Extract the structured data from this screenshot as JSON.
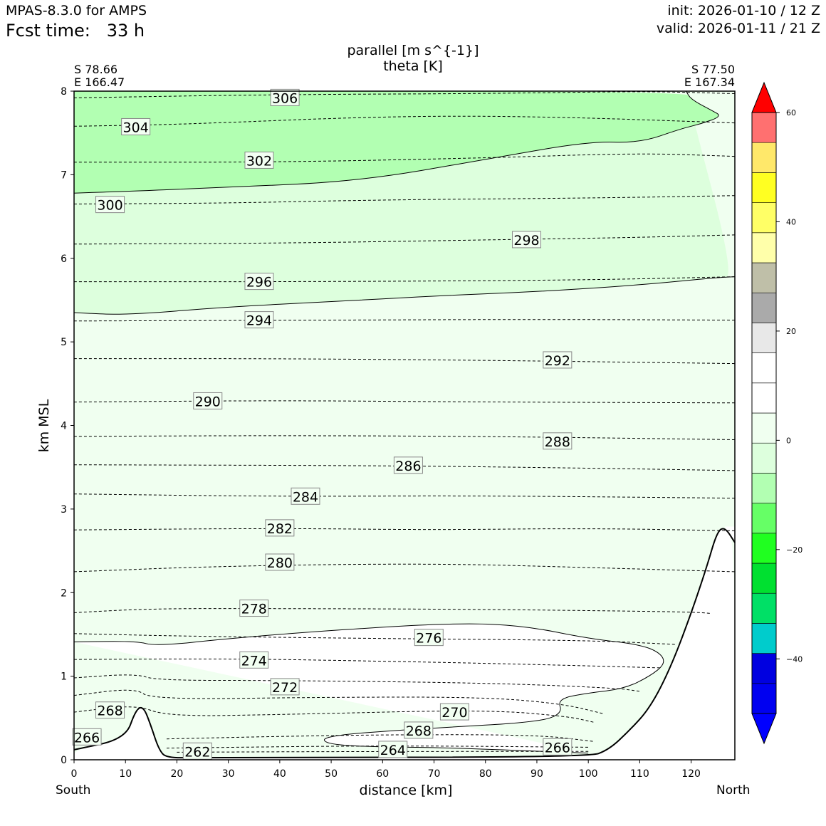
{
  "header": {
    "model": "MPAS-8.3.0 for AMPS",
    "fcst_label": "Fcst time:",
    "fcst_value": "33 h",
    "init": "init: 2026-01-10 / 12 Z",
    "valid": "valid: 2026-01-11 / 21 Z"
  },
  "chart_data": {
    "type": "cross-section",
    "title": "parallel [m s^{-1}]",
    "subtitle": "theta [K]",
    "xlabel": "distance [km]",
    "ylabel": "km MSL",
    "xlim": [
      0,
      128.5
    ],
    "ylim": [
      0,
      8
    ],
    "x_ticks": [
      0,
      10,
      20,
      30,
      40,
      50,
      60,
      70,
      80,
      90,
      100,
      110,
      120
    ],
    "y_ticks": [
      0,
      1,
      2,
      3,
      4,
      5,
      6,
      7,
      8
    ],
    "left_end": [
      "S 78.66",
      "E 166.47"
    ],
    "right_end": [
      "S 77.50",
      "E 167.34"
    ],
    "left_side": "South",
    "right_side": "North",
    "colorbar": {
      "min": -55,
      "max": 65,
      "colors": [
        "#0000ff",
        "#0000f0",
        "#0000e0",
        "#00cccc",
        "#00e066",
        "#00e030",
        "#20ff20",
        "#66ff66",
        "#b2ffb2",
        "#ddffdd",
        "#f0fff0",
        "#ffffff",
        "#ffffff",
        "#e8e8e8",
        "#aaaaaa",
        "#bfbfa8",
        "#ffffaa",
        "#ffff66",
        "#ffff22",
        "#ffe86a",
        "#ff7070",
        "#ff0000"
      ],
      "ticks": [
        60,
        40,
        20,
        0,
        -20,
        -40
      ]
    },
    "theta_labels": [
      {
        "v": "306",
        "x": 41.0,
        "y": 7.92
      },
      {
        "v": "304",
        "x": 12.0,
        "y": 7.57
      },
      {
        "v": "302",
        "x": 36.0,
        "y": 7.17
      },
      {
        "v": "300",
        "x": 7.0,
        "y": 6.64
      },
      {
        "v": "298",
        "x": 88.0,
        "y": 6.22
      },
      {
        "v": "296",
        "x": 36.0,
        "y": 5.72
      },
      {
        "v": "294",
        "x": 36.0,
        "y": 5.26
      },
      {
        "v": "292",
        "x": 94.0,
        "y": 4.78
      },
      {
        "v": "290",
        "x": 26.0,
        "y": 4.29
      },
      {
        "v": "288",
        "x": 94.0,
        "y": 3.81
      },
      {
        "v": "286",
        "x": 65.0,
        "y": 3.52
      },
      {
        "v": "284",
        "x": 45.0,
        "y": 3.15
      },
      {
        "v": "282",
        "x": 40.0,
        "y": 2.77
      },
      {
        "v": "280",
        "x": 40.0,
        "y": 2.36
      },
      {
        "v": "278",
        "x": 35.0,
        "y": 1.81
      },
      {
        "v": "276",
        "x": 69.0,
        "y": 1.46
      },
      {
        "v": "274",
        "x": 35.0,
        "y": 1.19
      },
      {
        "v": "272",
        "x": 41.0,
        "y": 0.87
      },
      {
        "v": "270",
        "x": 74.0,
        "y": 0.57
      },
      {
        "v": "268",
        "x": 7.0,
        "y": 0.59
      },
      {
        "v": "268",
        "x": 67.0,
        "y": 0.35
      },
      {
        "v": "266",
        "x": 2.5,
        "y": 0.27
      },
      {
        "v": "266",
        "x": 94.0,
        "y": 0.15
      },
      {
        "v": "264",
        "x": 62.0,
        "y": 0.12
      },
      {
        "v": "262",
        "x": 24.0,
        "y": 0.1
      }
    ],
    "theta_lines": [
      [
        [
          0,
          7.92
        ],
        [
          40,
          7.96
        ],
        [
          80,
          7.97
        ],
        [
          111,
          8.0
        ],
        [
          128.5,
          7.97
        ]
      ],
      [
        [
          0,
          7.58
        ],
        [
          20,
          7.6
        ],
        [
          60,
          7.7
        ],
        [
          90,
          7.7
        ],
        [
          128.5,
          7.62
        ]
      ],
      [
        [
          0,
          7.15
        ],
        [
          40,
          7.15
        ],
        [
          80,
          7.2
        ],
        [
          110,
          7.26
        ],
        [
          128.5,
          7.22
        ]
      ],
      [
        [
          0,
          6.65
        ],
        [
          30,
          6.66
        ],
        [
          60,
          6.7
        ],
        [
          100,
          6.72
        ],
        [
          128.5,
          6.75
        ]
      ],
      [
        [
          0,
          6.17
        ],
        [
          40,
          6.18
        ],
        [
          80,
          6.22
        ],
        [
          110,
          6.25
        ],
        [
          128.5,
          6.28
        ]
      ],
      [
        [
          0,
          5.72
        ],
        [
          50,
          5.72
        ],
        [
          100,
          5.74
        ],
        [
          128.5,
          5.78
        ]
      ],
      [
        [
          0,
          5.25
        ],
        [
          50,
          5.26
        ],
        [
          90,
          5.27
        ],
        [
          128.5,
          5.26
        ]
      ],
      [
        [
          0,
          4.8
        ],
        [
          40,
          4.8
        ],
        [
          80,
          4.78
        ],
        [
          128.5,
          4.74
        ]
      ],
      [
        [
          0,
          4.28
        ],
        [
          40,
          4.3
        ],
        [
          80,
          4.28
        ],
        [
          128.5,
          4.27
        ]
      ],
      [
        [
          0,
          3.87
        ],
        [
          40,
          3.88
        ],
        [
          80,
          3.87
        ],
        [
          128.5,
          3.83
        ]
      ],
      [
        [
          0,
          3.53
        ],
        [
          60,
          3.52
        ],
        [
          100,
          3.49
        ],
        [
          128.5,
          3.46
        ]
      ],
      [
        [
          0,
          3.18
        ],
        [
          40,
          3.15
        ],
        [
          80,
          3.16
        ],
        [
          128.5,
          3.13
        ]
      ],
      [
        [
          0,
          2.75
        ],
        [
          40,
          2.77
        ],
        [
          70,
          2.75
        ],
        [
          100,
          2.77
        ],
        [
          128.5,
          2.74
        ]
      ],
      [
        [
          0,
          2.25
        ],
        [
          30,
          2.32
        ],
        [
          70,
          2.35
        ],
        [
          100,
          2.3
        ],
        [
          128.5,
          2.25
        ]
      ],
      [
        [
          0,
          1.76
        ],
        [
          15,
          1.81
        ],
        [
          40,
          1.81
        ],
        [
          80,
          1.8
        ],
        [
          120,
          1.77
        ],
        [
          124,
          1.75
        ]
      ],
      [
        [
          0,
          1.51
        ],
        [
          20,
          1.48
        ],
        [
          60,
          1.45
        ],
        [
          100,
          1.43
        ],
        [
          117,
          1.38
        ]
      ],
      [
        [
          0,
          1.2
        ],
        [
          30,
          1.21
        ],
        [
          60,
          1.18
        ],
        [
          90,
          1.14
        ],
        [
          114,
          1.1
        ]
      ],
      [
        [
          0,
          0.98
        ],
        [
          12,
          1.03
        ],
        [
          16,
          0.95
        ],
        [
          40,
          0.95
        ],
        [
          80,
          0.92
        ],
        [
          105,
          0.86
        ],
        [
          110,
          0.82
        ]
      ],
      [
        [
          0,
          0.77
        ],
        [
          12,
          0.86
        ],
        [
          15,
          0.72
        ],
        [
          50,
          0.75
        ],
        [
          80,
          0.75
        ],
        [
          95,
          0.67
        ],
        [
          103,
          0.55
        ]
      ],
      [
        [
          0,
          0.57
        ],
        [
          12,
          0.66
        ],
        [
          18,
          0.52
        ],
        [
          40,
          0.54
        ],
        [
          80,
          0.6
        ],
        [
          96,
          0.52
        ],
        [
          101,
          0.45
        ]
      ],
      [
        [
          18,
          0.25
        ],
        [
          40,
          0.28
        ],
        [
          60,
          0.3
        ],
        [
          90,
          0.3
        ],
        [
          101,
          0.22
        ]
      ],
      [
        [
          18,
          0.14
        ],
        [
          60,
          0.17
        ],
        [
          100,
          0.15
        ]
      ],
      [
        [
          20,
          0.09
        ],
        [
          60,
          0.1
        ],
        [
          100,
          0.1
        ]
      ]
    ],
    "wind_contours": [
      [
        [
          0,
          6.78
        ],
        [
          10,
          6.8
        ],
        [
          30,
          6.85
        ],
        [
          55,
          6.92
        ],
        [
          80,
          7.18
        ],
        [
          100,
          7.4
        ],
        [
          110,
          7.38
        ],
        [
          118,
          7.55
        ],
        [
          122,
          7.61
        ],
        [
          126,
          7.7
        ],
        [
          124,
          7.77
        ],
        [
          120,
          7.9
        ],
        [
          119,
          8.0
        ]
      ],
      [
        [
          0,
          5.35
        ],
        [
          10,
          5.32
        ],
        [
          30,
          5.42
        ],
        [
          50,
          5.48
        ],
        [
          70,
          5.55
        ],
        [
          90,
          5.6
        ],
        [
          110,
          5.68
        ],
        [
          125,
          5.77
        ],
        [
          128.5,
          5.78
        ]
      ],
      [
        [
          0,
          1.41
        ],
        [
          12,
          1.42
        ],
        [
          16,
          1.36
        ],
        [
          30,
          1.45
        ],
        [
          50,
          1.55
        ],
        [
          75,
          1.64
        ],
        [
          88,
          1.6
        ],
        [
          100,
          1.45
        ],
        [
          110,
          1.38
        ],
        [
          114,
          1.28
        ],
        [
          115,
          1.15
        ],
        [
          112,
          1.0
        ],
        [
          107,
          0.85
        ],
        [
          100,
          0.8
        ],
        [
          94,
          0.73
        ],
        [
          95,
          0.55
        ],
        [
          90,
          0.45
        ],
        [
          70,
          0.38
        ],
        [
          60,
          0.34
        ],
        [
          52,
          0.3
        ],
        [
          48,
          0.25
        ],
        [
          50,
          0.18
        ],
        [
          60,
          0.15
        ],
        [
          70,
          0.15
        ],
        [
          100,
          0.08
        ]
      ]
    ],
    "terrain": [
      [
        0,
        0.12
      ],
      [
        10,
        0.25
      ],
      [
        12,
        0.6
      ],
      [
        13.5,
        0.64
      ],
      [
        15,
        0.4
      ],
      [
        16.5,
        0.12
      ],
      [
        18,
        0.02
      ],
      [
        25,
        0.03
      ],
      [
        100,
        0.03
      ],
      [
        104,
        0.12
      ],
      [
        108,
        0.35
      ],
      [
        112,
        0.62
      ],
      [
        116,
        1.1
      ],
      [
        120,
        1.75
      ],
      [
        123,
        2.3
      ],
      [
        125,
        2.72
      ],
      [
        126.5,
        2.79
      ],
      [
        128.5,
        2.6
      ]
    ]
  }
}
